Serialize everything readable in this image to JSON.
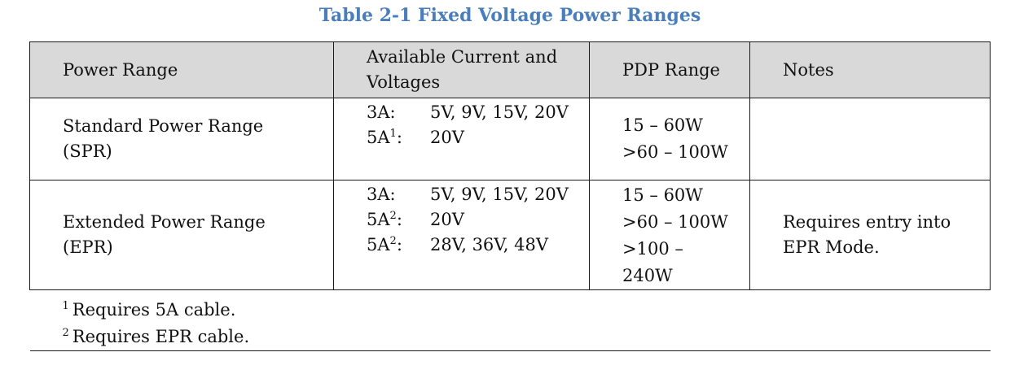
{
  "caption": "Table 2-1 Fixed Voltage Power Ranges",
  "headers": {
    "power_range": "Power Range",
    "current_voltages": "Available Current and Voltages",
    "pdp_range": "PDP Range",
    "notes": "Notes"
  },
  "rows": [
    {
      "power_range": [
        "Standard Power Range",
        "(SPR)"
      ],
      "voltages": [
        {
          "amp": "3A",
          "mark": "",
          "volts": "5V, 9V, 15V, 20V"
        },
        {
          "amp": "5A",
          "mark": "1",
          "volts": "20V"
        }
      ],
      "pdp": [
        "15 – 60W",
        ">60 – 100W"
      ],
      "notes": ""
    },
    {
      "power_range": [
        "Extended Power Range",
        "(EPR)"
      ],
      "voltages": [
        {
          "amp": "3A",
          "mark": "",
          "volts": "5V, 9V, 15V, 20V"
        },
        {
          "amp": "5A",
          "mark": "2",
          "volts": "20V"
        },
        {
          "amp": "5A",
          "mark": "2",
          "volts": "28V, 36V, 48V"
        }
      ],
      "pdp": [
        "15 – 60W",
        ">60 – 100W",
        ">100 – 240W"
      ],
      "notes": "Requires entry into EPR Mode."
    }
  ],
  "footnotes": [
    {
      "mark": "1",
      "text": "Requires 5A cable."
    },
    {
      "mark": "2",
      "text": "Requires EPR cable."
    }
  ]
}
